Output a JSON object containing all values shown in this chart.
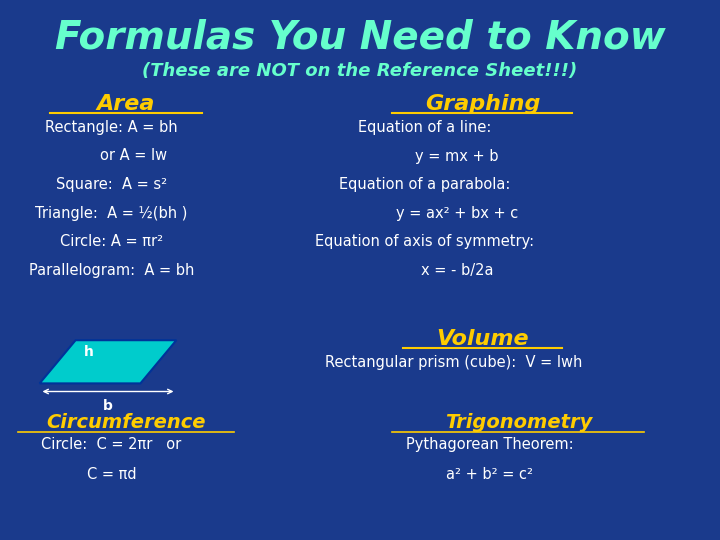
{
  "title": "Formulas You Need to Know",
  "subtitle": "(These are NOT on the Reference Sheet!!!)",
  "bg_color": "#1a3a8c",
  "title_color": "#66ffcc",
  "subtitle_color": "#66ffcc",
  "heading_color": "#ffcc00",
  "body_color": "#ffffff",
  "parallelogram_color": "#00cccc",
  "area_heading": "Area",
  "area_lines": [
    "Rectangle: A = bh",
    "or A = lw",
    "Square:  A = s²",
    "Triangle:  A = ½(bh )",
    "Circle: A = πr²",
    "Parallelogram:  A = bh"
  ],
  "graphing_heading": "Graphing",
  "graphing_lines": [
    "Equation of a line:",
    "y = mx + b",
    "Equation of a parabola:",
    "y = ax² + bx + c",
    "Equation of axis of symmetry:",
    "x = - b/2a"
  ],
  "volume_heading": "Volume",
  "volume_lines": [
    "Rectangular prism (cube):  V = lwh"
  ],
  "circumference_heading": "Circumference",
  "circumference_lines": [
    "Circle:  C = 2πr   or",
    "C = πd"
  ],
  "trig_heading": "Trigonometry",
  "trig_lines": [
    "Pythagorean Theorem:",
    "a² + b² = c²"
  ]
}
